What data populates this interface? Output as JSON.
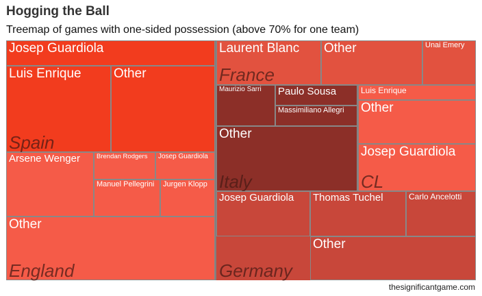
{
  "title": "Hogging the Ball",
  "subtitle": "Treemap of games with one-sided possession (above 70% for one team)",
  "caption": "thesignificantgame.com",
  "chart_data": {
    "type": "treemap",
    "title": "Hogging the Ball",
    "subtitle": "Treemap of games with one-sided possession (above 70% for one team)",
    "value_unit": "relative share of games (estimated from area)",
    "groups": [
      {
        "name": "Spain",
        "color": "#f23c1e",
        "children": [
          {
            "name": "Josep Guardiola",
            "value": 10.5
          },
          {
            "name": "Luis Enrique",
            "value": 7.9
          },
          {
            "name": "Other",
            "value": 7.9
          }
        ]
      },
      {
        "name": "England",
        "color": "#f55b48",
        "children": [
          {
            "name": "Arsene Wenger",
            "value": 5.6
          },
          {
            "name": "Brendan Rodgers",
            "value": 2.0
          },
          {
            "name": "Josep Guardiola",
            "value": 1.7
          },
          {
            "name": "Manuel Pellegrini",
            "value": 2.1
          },
          {
            "name": "Jurgen Klopp",
            "value": 1.7
          },
          {
            "name": "Other",
            "value": 10.5
          }
        ]
      },
      {
        "name": "France",
        "color": "#e2523f",
        "children": [
          {
            "name": "Laurent Blanc",
            "value": 5.2
          },
          {
            "name": "Other",
            "value": 4.9
          },
          {
            "name": "Unai Emery",
            "value": 2.5
          }
        ]
      },
      {
        "name": "Italy",
        "color": "#8c2f28",
        "children": [
          {
            "name": "Maurizio Sarri",
            "value": 2.5
          },
          {
            "name": "Paulo Sousa",
            "value": 3.1
          },
          {
            "name": "Massimiliano Allegri",
            "value": 3.1
          },
          {
            "name": "Other",
            "value": 10.0
          }
        ]
      },
      {
        "name": "CL",
        "color": "#f55b48",
        "children": [
          {
            "name": "Luis Enrique",
            "value": 2.2
          },
          {
            "name": "Other",
            "value": 6.4
          },
          {
            "name": "Josep Guardiola",
            "value": 6.0
          }
        ]
      },
      {
        "name": "Germany",
        "color": "#c8473a",
        "children": [
          {
            "name": "Josep Guardiola",
            "value": 6.0
          },
          {
            "name": "Thomas Tuchel",
            "value": 5.7
          },
          {
            "name": "Carlo Ancelotti",
            "value": 4.3
          },
          {
            "name": "Other",
            "value": 11.0
          }
        ]
      }
    ]
  }
}
